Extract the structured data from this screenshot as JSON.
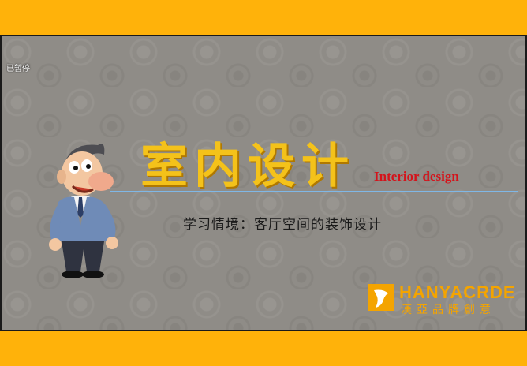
{
  "status": {
    "paused_label": "已暂停"
  },
  "slide": {
    "title_zh": "室内设计",
    "title_en": "Interior design",
    "subtitle": "学习情境：客厅空间的装饰设计"
  },
  "logo": {
    "brand_en": "HANYACRDE",
    "brand_zh": "漢亞品牌創意",
    "icon": "bird-icon"
  },
  "colors": {
    "outer_background": "#FFB20A",
    "slide_background": "#8f8c87",
    "title_zh_color": "#F4C21A",
    "title_en_color": "#d4131b",
    "divider_color": "#7fb7e6",
    "logo_color": "#F4A400"
  },
  "character": {
    "icon": "cartoon-businessman"
  }
}
